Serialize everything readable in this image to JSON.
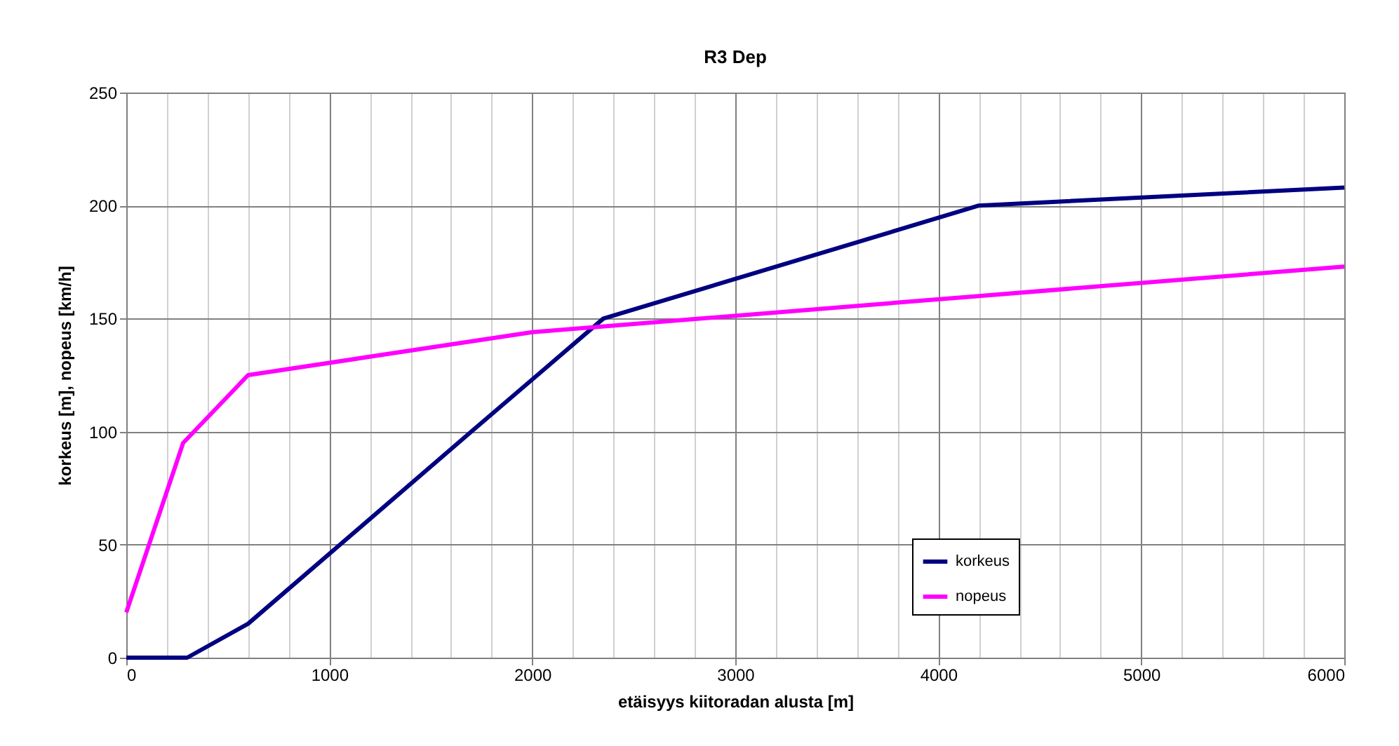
{
  "chart_data": {
    "type": "line",
    "title": "R3 Dep",
    "xlabel": "etäisyys kiitoradan alusta [m]",
    "ylabel": "korkeus [m], nopeus [km/h]",
    "xlim": [
      0,
      6000
    ],
    "xticks": [
      0,
      {
        "value": 200,
        "label": null
      },
      {
        "value": 400,
        "label": null
      },
      {
        "value": 600,
        "label": null
      },
      {
        "value": 800,
        "label": null
      },
      1000,
      {
        "value": 1200,
        "label": null
      },
      {
        "value": 1400,
        "label": null
      },
      {
        "value": 1600,
        "label": null
      },
      {
        "value": 1800,
        "label": null
      },
      2000,
      {
        "value": 2200,
        "label": null
      },
      {
        "value": 2400,
        "label": null
      },
      {
        "value": 2600,
        "label": null
      },
      {
        "value": 2800,
        "label": null
      },
      3000,
      {
        "value": 3200,
        "label": null
      },
      {
        "value": 3400,
        "label": null
      },
      {
        "value": 3600,
        "label": null
      },
      {
        "value": 3800,
        "label": null
      },
      4000,
      {
        "value": 4200,
        "label": null
      },
      {
        "value": 4400,
        "label": null
      },
      {
        "value": 4600,
        "label": null
      },
      {
        "value": 4800,
        "label": null
      },
      5000,
      {
        "value": 5200,
        "label": null
      },
      {
        "value": 5400,
        "label": null
      },
      {
        "value": 5600,
        "label": null
      },
      {
        "value": 5800,
        "label": null
      },
      6000
    ],
    "ylim": [
      0,
      250
    ],
    "yticks": [
      0,
      50,
      100,
      150,
      200,
      250
    ],
    "grid": true,
    "legend": "bottom right",
    "marker": "none",
    "line_style": "solid",
    "series": [
      {
        "name": "korkeus",
        "color": "#000080",
        "x": [
          0,
          300,
          600,
          1700,
          2350,
          4200,
          6000
        ],
        "values": [
          0,
          0,
          15,
          100,
          150,
          200,
          208
        ]
      },
      {
        "name": "nopeus",
        "color": "#ff00ff",
        "x": [
          0,
          280,
          600,
          2000,
          4200,
          6000
        ],
        "values": [
          20,
          95,
          125,
          144,
          160,
          173
        ]
      }
    ]
  }
}
